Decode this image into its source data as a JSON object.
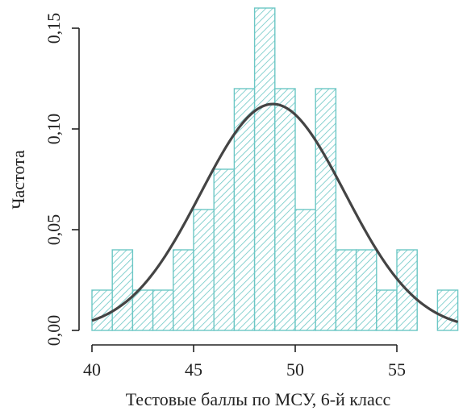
{
  "chart_data": {
    "type": "bar",
    "subtype": "histogram",
    "xlabel": "Тестовые баллы по МСУ, 6-й класс",
    "ylabel": "Частота",
    "xlim": [
      40,
      58
    ],
    "ylim": [
      0,
      0.15
    ],
    "x_ticks": [
      40,
      45,
      50,
      55
    ],
    "x_tick_labels": [
      "40",
      "45",
      "50",
      "55"
    ],
    "y_ticks": [
      0,
      0.05,
      0.1,
      0.15
    ],
    "y_tick_labels": [
      "0,00",
      "0,05",
      "0,10",
      "0,15"
    ],
    "bin_width": 1,
    "bins": [
      {
        "start": 40,
        "end": 41,
        "value": 0.02
      },
      {
        "start": 41,
        "end": 42,
        "value": 0.04
      },
      {
        "start": 42,
        "end": 43,
        "value": 0.02
      },
      {
        "start": 43,
        "end": 44,
        "value": 0.02
      },
      {
        "start": 44,
        "end": 45,
        "value": 0.04
      },
      {
        "start": 45,
        "end": 46,
        "value": 0.06
      },
      {
        "start": 46,
        "end": 47,
        "value": 0.08
      },
      {
        "start": 47,
        "end": 48,
        "value": 0.12
      },
      {
        "start": 48,
        "end": 49,
        "value": 0.16
      },
      {
        "start": 49,
        "end": 50,
        "value": 0.12
      },
      {
        "start": 50,
        "end": 51,
        "value": 0.06
      },
      {
        "start": 51,
        "end": 52,
        "value": 0.12
      },
      {
        "start": 52,
        "end": 53,
        "value": 0.04
      },
      {
        "start": 53,
        "end": 54,
        "value": 0.04
      },
      {
        "start": 54,
        "end": 55,
        "value": 0.02
      },
      {
        "start": 55,
        "end": 56,
        "value": 0.04
      },
      {
        "start": 57,
        "end": 58,
        "value": 0.02
      }
    ],
    "density_curve": {
      "type": "normal",
      "mean": 48.9,
      "sd": 3.55,
      "x_range": [
        40,
        58
      ]
    },
    "grid": false,
    "colors": {
      "bar_stroke": "#6cc7c5",
      "hatch": "#6cc7c5",
      "curve": "#444444",
      "axis": "#222222"
    }
  }
}
